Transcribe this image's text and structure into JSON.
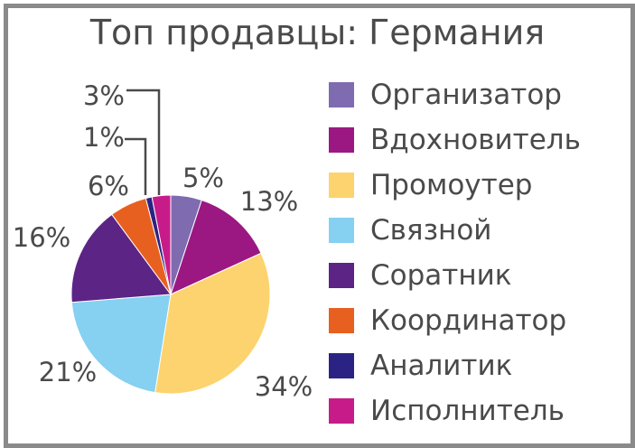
{
  "chart_data": {
    "type": "pie",
    "title": "Топ продавцы: Германия",
    "legend_position": "right",
    "slices": [
      {
        "label": "Организатор",
        "value": 5,
        "value_label": "5%",
        "color": "#7f6bb0"
      },
      {
        "label": "Вдохновитель",
        "value": 13,
        "value_label": "13%",
        "color": "#9b1882"
      },
      {
        "label": "Промоутер",
        "value": 34,
        "value_label": "34%",
        "color": "#fcd36e"
      },
      {
        "label": "Связной",
        "value": 21,
        "value_label": "21%",
        "color": "#86d0f1"
      },
      {
        "label": "Соратник",
        "value": 16,
        "value_label": "16%",
        "color": "#5c2485"
      },
      {
        "label": "Координатор",
        "value": 6,
        "value_label": "6%",
        "color": "#e8601f"
      },
      {
        "label": "Аналитик",
        "value": 1,
        "value_label": "1%",
        "color": "#2b2384"
      },
      {
        "label": "Исполнитель",
        "value": 3,
        "value_label": "3%",
        "color": "#c81b8a"
      }
    ]
  }
}
